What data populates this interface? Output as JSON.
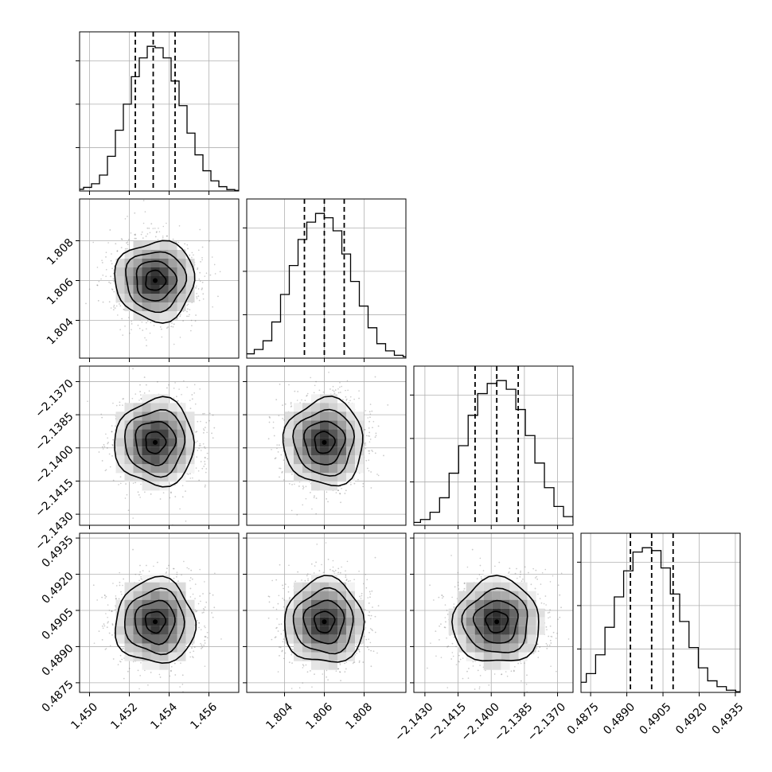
{
  "chart_data": {
    "type": "corner",
    "title": "",
    "parameters": [
      {
        "name": "",
        "range": [
          1.4495,
          1.4575
        ],
        "ticks": [
          1.45,
          1.452,
          1.454,
          1.456
        ],
        "tick_labels": [
          "1.450",
          "1.452",
          "1.454",
          "1.456"
        ],
        "quantiles": [
          1.4523,
          1.4532,
          1.4543
        ],
        "median": 1.4533,
        "sigma": 0.001
      },
      {
        "name": "",
        "range": [
          1.8021,
          1.8101
        ],
        "ticks": [
          1.804,
          1.806,
          1.808
        ],
        "tick_labels": [
          "1.804",
          "1.806",
          "1.808"
        ],
        "quantiles": [
          1.805,
          1.806,
          1.807
        ],
        "median": 1.806,
        "sigma": 0.001
      },
      {
        "name": "",
        "range": [
          -2.1435,
          -2.1363
        ],
        "ticks": [
          -2.143,
          -2.1415,
          -2.14,
          -2.1385,
          -2.137
        ],
        "tick_labels": [
          "−2.1430",
          "−2.1415",
          "−2.1400",
          "−2.1385",
          "−2.1370"
        ],
        "quantiles": [
          -2.14073,
          -2.13975,
          -2.13878
        ],
        "median": -2.13975,
        "sigma": 0.00098
      },
      {
        "name": "",
        "range": [
          0.4871,
          0.4937
        ],
        "ticks": [
          0.4875,
          0.489,
          0.4905,
          0.492,
          0.4935
        ],
        "tick_labels": [
          "0.4875",
          "0.4890",
          "0.4905",
          "0.4920",
          "0.4935"
        ],
        "quantiles": [
          0.48915,
          0.49003,
          0.49092
        ],
        "median": 0.49003,
        "sigma": 0.00088
      }
    ],
    "histograms": [
      {
        "bin_values": [
          0.005,
          0.012,
          0.025,
          0.05,
          0.11,
          0.24,
          0.42,
          0.6,
          0.79,
          0.92,
          1.0,
          0.99,
          0.92,
          0.76,
          0.59,
          0.4,
          0.25,
          0.14,
          0.07,
          0.03,
          0.01,
          0.004
        ]
      },
      {
        "bin_values": [
          0.01,
          0.03,
          0.06,
          0.12,
          0.25,
          0.44,
          0.64,
          0.82,
          0.94,
          1.0,
          0.97,
          0.88,
          0.72,
          0.53,
          0.36,
          0.21,
          0.1,
          0.05,
          0.02,
          0.01
        ]
      },
      {
        "bin_values": [
          0.005,
          0.02,
          0.04,
          0.09,
          0.19,
          0.36,
          0.55,
          0.76,
          0.91,
          0.98,
          1.0,
          0.94,
          0.8,
          0.62,
          0.43,
          0.26,
          0.13,
          0.06,
          0.02,
          0.01
        ]
      },
      {
        "bin_values": [
          0.01,
          0.03,
          0.07,
          0.13,
          0.26,
          0.45,
          0.66,
          0.84,
          0.97,
          1.0,
          0.98,
          0.86,
          0.68,
          0.49,
          0.31,
          0.17,
          0.08,
          0.04,
          0.015,
          0.005
        ]
      }
    ],
    "contour_levels_sigma": [
      0.5,
      1.0,
      1.5,
      2.0
    ],
    "grid": true,
    "legend": "none"
  }
}
